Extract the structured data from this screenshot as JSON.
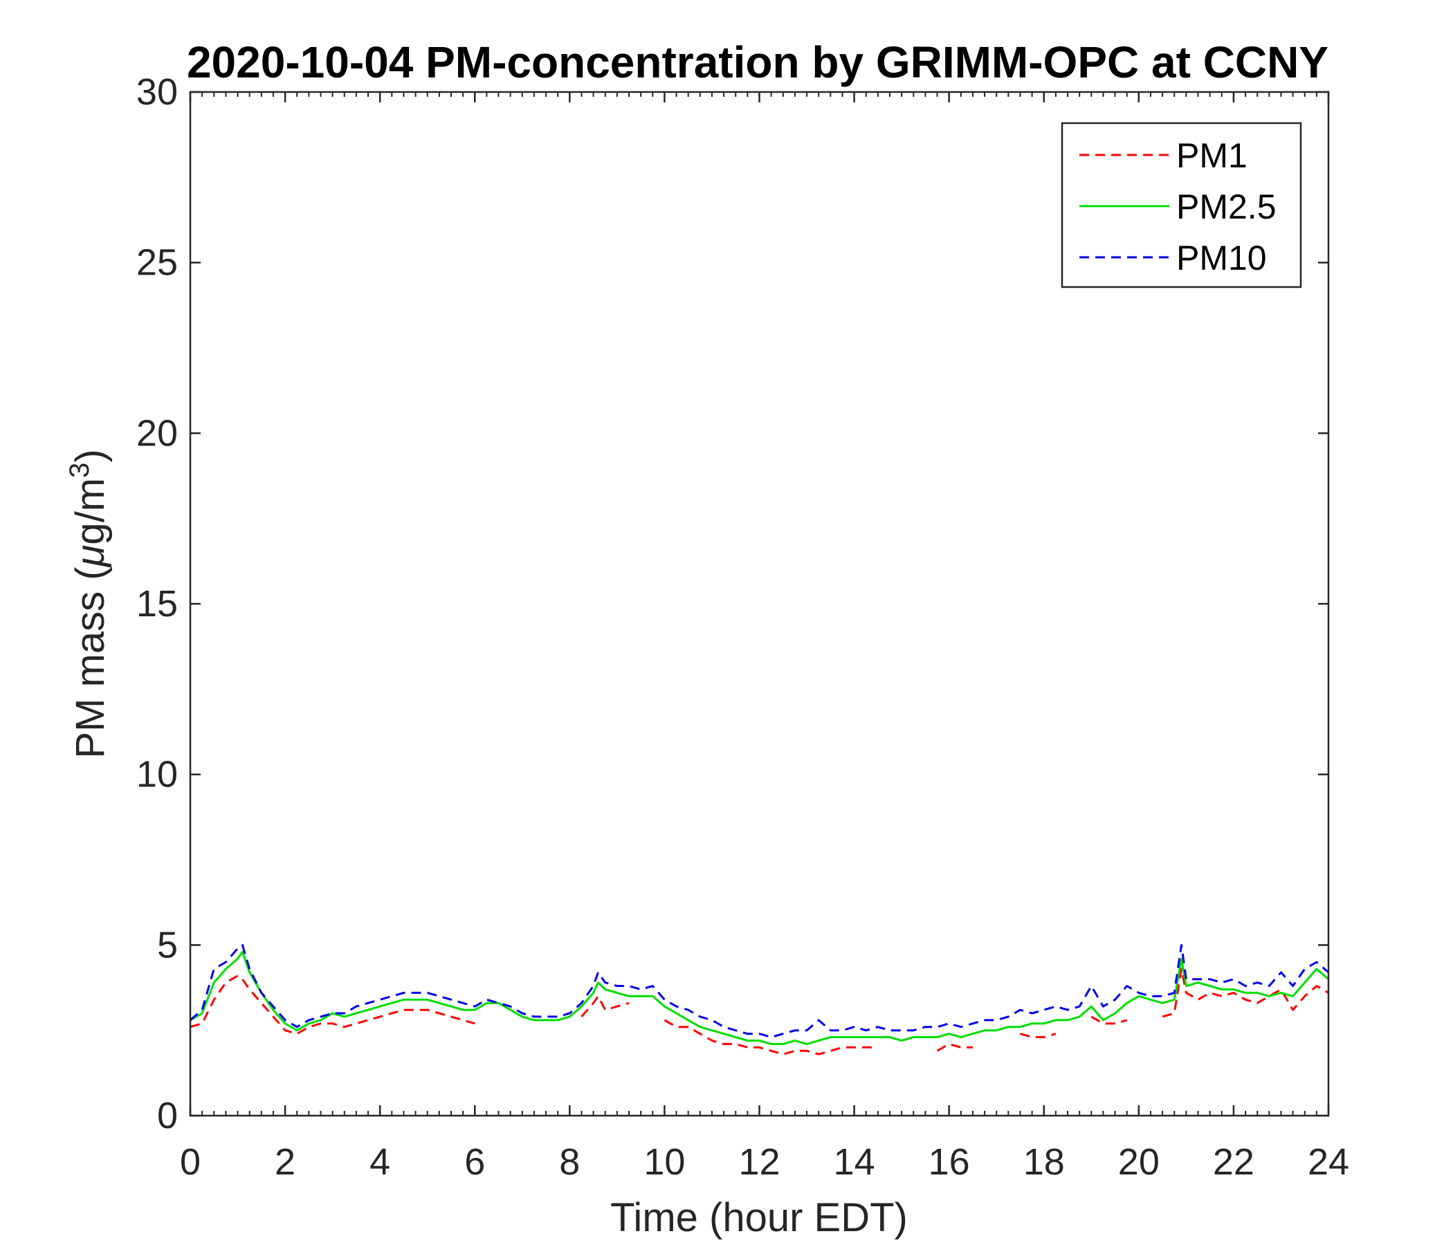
{
  "chart_data": {
    "type": "line",
    "title": "2020-10-04 PM-concentration by GRIMM-OPC at CCNY",
    "xlabel": "Time (hour EDT)",
    "ylabel": "PM mass (μg/m³)",
    "ylabel_parts": {
      "prefix": "PM mass (",
      "mu": "μ",
      "unit": "g/m",
      "sup": "3",
      "suffix": ")"
    },
    "xlim": [
      0,
      24
    ],
    "ylim": [
      0,
      30
    ],
    "xticks": [
      "0",
      "2",
      "4",
      "6",
      "8",
      "10",
      "12",
      "14",
      "16",
      "18",
      "20",
      "22",
      "24"
    ],
    "yticks": [
      "0",
      "5",
      "10",
      "15",
      "20",
      "25",
      "30"
    ],
    "legend_position": "top-right",
    "grid": false,
    "x": [
      0,
      0.25,
      0.5,
      0.75,
      1.0,
      1.1,
      1.25,
      1.5,
      1.75,
      2.0,
      2.25,
      2.5,
      2.75,
      3.0,
      3.25,
      3.5,
      3.75,
      4.0,
      4.25,
      4.5,
      4.75,
      5.0,
      5.25,
      5.5,
      5.75,
      6.0,
      6.25,
      6.5,
      6.75,
      7.0,
      7.25,
      7.5,
      7.75,
      8.0,
      8.25,
      8.5,
      8.6,
      8.75,
      9.0,
      9.25,
      9.5,
      9.75,
      10.0,
      10.25,
      10.5,
      10.75,
      11.0,
      11.25,
      11.5,
      11.75,
      12.0,
      12.25,
      12.5,
      12.75,
      13.0,
      13.25,
      13.5,
      13.75,
      14.0,
      14.25,
      14.5,
      14.75,
      15.0,
      15.25,
      15.5,
      15.75,
      16.0,
      16.25,
      16.5,
      16.75,
      17.0,
      17.25,
      17.5,
      17.75,
      18.0,
      18.25,
      18.5,
      18.75,
      19.0,
      19.25,
      19.5,
      19.75,
      20.0,
      20.25,
      20.5,
      20.75,
      20.9,
      21.0,
      21.25,
      21.5,
      21.75,
      22.0,
      22.25,
      22.5,
      22.75,
      23.0,
      23.25,
      23.5,
      23.75,
      24.0
    ],
    "series": [
      {
        "name": "PM1",
        "color": "#ff0000",
        "dash": "14,9",
        "values": [
          2.6,
          2.7,
          3.4,
          3.9,
          4.1,
          4.0,
          3.7,
          3.3,
          2.9,
          2.5,
          2.4,
          2.6,
          2.7,
          2.7,
          2.6,
          2.7,
          2.8,
          2.9,
          3.0,
          3.1,
          3.1,
          3.1,
          3.0,
          2.9,
          2.8,
          2.7,
          null,
          null,
          null,
          null,
          null,
          null,
          null,
          null,
          2.9,
          3.3,
          3.5,
          3.1,
          3.2,
          3.3,
          null,
          null,
          2.8,
          2.6,
          2.6,
          2.4,
          2.2,
          2.1,
          2.1,
          2.0,
          2.0,
          1.9,
          1.8,
          1.9,
          1.9,
          1.8,
          1.9,
          2.0,
          2.0,
          2.0,
          2.0,
          null,
          null,
          null,
          null,
          1.9,
          2.1,
          2.0,
          2.0,
          null,
          null,
          null,
          2.4,
          2.3,
          2.3,
          2.4,
          null,
          null,
          2.9,
          2.7,
          2.7,
          2.8,
          null,
          null,
          2.9,
          3.0,
          4.3,
          3.6,
          3.4,
          3.6,
          3.5,
          3.6,
          3.4,
          3.3,
          3.5,
          3.7,
          3.1,
          3.5,
          3.8,
          3.6
        ]
      },
      {
        "name": "PM2.5",
        "color": "#00dd00",
        "dash": "",
        "values": [
          2.8,
          3.0,
          3.9,
          4.3,
          4.6,
          4.8,
          4.2,
          3.6,
          3.1,
          2.7,
          2.5,
          2.7,
          2.8,
          3.0,
          2.9,
          3.0,
          3.1,
          3.2,
          3.3,
          3.4,
          3.4,
          3.4,
          3.3,
          3.2,
          3.1,
          3.1,
          3.3,
          3.3,
          3.1,
          2.9,
          2.8,
          2.8,
          2.8,
          2.9,
          3.2,
          3.6,
          3.9,
          3.7,
          3.6,
          3.5,
          3.5,
          3.5,
          3.2,
          3.0,
          2.8,
          2.6,
          2.5,
          2.4,
          2.3,
          2.2,
          2.2,
          2.1,
          2.1,
          2.2,
          2.1,
          2.2,
          2.3,
          2.3,
          2.3,
          2.3,
          2.3,
          2.3,
          2.2,
          2.3,
          2.3,
          2.3,
          2.4,
          2.3,
          2.4,
          2.5,
          2.5,
          2.6,
          2.6,
          2.7,
          2.7,
          2.8,
          2.8,
          2.9,
          3.2,
          2.8,
          3.0,
          3.3,
          3.5,
          3.4,
          3.3,
          3.4,
          4.6,
          3.8,
          3.9,
          3.8,
          3.7,
          3.7,
          3.6,
          3.6,
          3.5,
          3.6,
          3.5,
          3.9,
          4.3,
          4.0
        ]
      },
      {
        "name": "PM10",
        "color": "#0000ee",
        "dash": "14,9",
        "values": [
          2.8,
          3.1,
          4.3,
          4.5,
          4.9,
          5.0,
          4.3,
          3.6,
          3.2,
          2.8,
          2.6,
          2.8,
          2.9,
          3.0,
          3.0,
          3.2,
          3.3,
          3.4,
          3.5,
          3.6,
          3.6,
          3.6,
          3.5,
          3.4,
          3.3,
          3.2,
          3.4,
          3.3,
          3.2,
          3.0,
          2.9,
          2.9,
          2.9,
          3.0,
          3.3,
          3.8,
          4.2,
          3.9,
          3.8,
          3.8,
          3.7,
          3.8,
          3.4,
          3.2,
          3.1,
          2.9,
          2.8,
          2.6,
          2.5,
          2.4,
          2.4,
          2.3,
          2.4,
          2.5,
          2.5,
          2.8,
          2.5,
          2.5,
          2.6,
          2.5,
          2.6,
          2.5,
          2.5,
          2.5,
          2.6,
          2.6,
          2.7,
          2.6,
          2.7,
          2.8,
          2.8,
          2.9,
          3.1,
          3.0,
          3.1,
          3.2,
          3.1,
          3.2,
          3.8,
          3.2,
          3.4,
          3.8,
          3.6,
          3.5,
          3.5,
          3.6,
          5.0,
          4.0,
          4.0,
          4.0,
          3.9,
          4.0,
          3.8,
          3.9,
          3.8,
          4.2,
          3.8,
          4.3,
          4.5,
          4.2
        ]
      }
    ]
  }
}
